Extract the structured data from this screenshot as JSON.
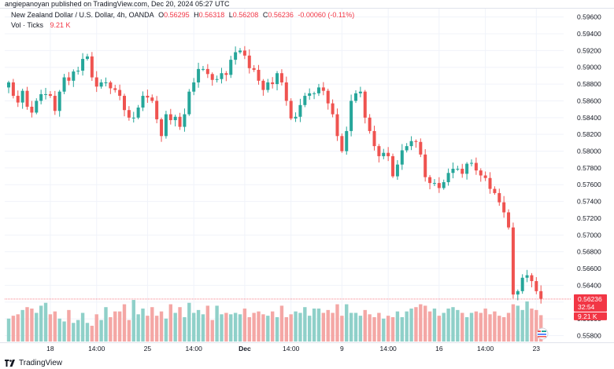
{
  "header": {
    "published": "angiepanoyan published on TradingView.com, Dec 20, 2024 05:27 UTC"
  },
  "legend": {
    "symbol": "New Zealand Dollar / U.S. Dollar, 4h, OANDA",
    "o_label": "O",
    "o_value": "0.56295",
    "h_label": "H",
    "h_value": "0.56318",
    "l_label": "L",
    "l_value": "0.56208",
    "c_label": "C",
    "c_value": "0.56236",
    "change": "-0.00060 (-0.11%)",
    "vol_label": "Vol · Ticks",
    "vol_value": "9.21 K"
  },
  "footer": {
    "brand": "TradingView"
  },
  "colors": {
    "up": "#26a69a",
    "down": "#ef5350",
    "vol_up": "#8fd0c9",
    "vol_down": "#f4a7a5",
    "tag_red": "#f23645",
    "grid": "#f0f3fa",
    "text": "#131722"
  },
  "chart_data": {
    "type": "candlestick",
    "title": "New Zealand Dollar / U.S. Dollar, 4h, OANDA",
    "ylim": [
      0.5572,
      0.597
    ],
    "y_ticks": [
      "0.59600",
      "0.59400",
      "0.59200",
      "0.59000",
      "0.58800",
      "0.58600",
      "0.58400",
      "0.58200",
      "0.58000",
      "0.57800",
      "0.57600",
      "0.57400",
      "0.57200",
      "0.57000",
      "0.56800",
      "0.56600",
      "0.56400",
      "0.56200",
      "0.56000",
      "0.55800"
    ],
    "x_ticks": [
      {
        "label": "18",
        "index": 9,
        "bold": false
      },
      {
        "label": "14:00",
        "index": 19,
        "bold": false
      },
      {
        "label": "25",
        "index": 30,
        "bold": false
      },
      {
        "label": "14:00",
        "index": 40,
        "bold": false
      },
      {
        "label": "Dec",
        "index": 51,
        "bold": true
      },
      {
        "label": "14:00",
        "index": 61,
        "bold": false
      },
      {
        "label": "9",
        "index": 72,
        "bold": false
      },
      {
        "label": "14:00",
        "index": 82,
        "bold": false
      },
      {
        "label": "16",
        "index": 93,
        "bold": false
      },
      {
        "label": "14:00",
        "index": 103,
        "bold": false
      },
      {
        "label": "23",
        "index": 114,
        "bold": false
      }
    ],
    "last_price": {
      "value": "0.56236",
      "countdown": "32:54"
    },
    "last_volume": "9.21 K",
    "closes": [
      0.5882,
      0.5866,
      0.5858,
      0.5872,
      0.5853,
      0.5846,
      0.586,
      0.5868,
      0.5868,
      0.5866,
      0.5848,
      0.5871,
      0.5888,
      0.5884,
      0.5895,
      0.5896,
      0.591,
      0.5913,
      0.5888,
      0.5877,
      0.5882,
      0.5882,
      0.5875,
      0.5873,
      0.5866,
      0.5849,
      0.584,
      0.584,
      0.5852,
      0.5866,
      0.5864,
      0.586,
      0.5838,
      0.5818,
      0.5844,
      0.5837,
      0.5841,
      0.5829,
      0.5844,
      0.5871,
      0.5882,
      0.5898,
      0.5898,
      0.5892,
      0.5885,
      0.5886,
      0.5893,
      0.5891,
      0.5909,
      0.5918,
      0.592,
      0.5914,
      0.5899,
      0.5897,
      0.5884,
      0.5873,
      0.5882,
      0.588,
      0.5893,
      0.5882,
      0.586,
      0.5839,
      0.5841,
      0.5855,
      0.5866,
      0.5869,
      0.5869,
      0.5876,
      0.5872,
      0.5857,
      0.5844,
      0.5818,
      0.58,
      0.5824,
      0.586,
      0.5869,
      0.5871,
      0.584,
      0.5824,
      0.5806,
      0.5794,
      0.5798,
      0.5794,
      0.577,
      0.5784,
      0.5801,
      0.5806,
      0.5812,
      0.5811,
      0.5796,
      0.5769,
      0.5762,
      0.5762,
      0.5756,
      0.5763,
      0.5774,
      0.5779,
      0.5779,
      0.5773,
      0.5785,
      0.5786,
      0.5777,
      0.5771,
      0.5768,
      0.5755,
      0.575,
      0.5739,
      0.5727,
      0.5709,
      0.5629,
      0.5633,
      0.5649,
      0.5652,
      0.5645,
      0.5633,
      0.5624
    ],
    "volumes": [
      8.0,
      9.0,
      9.5,
      11.0,
      12.0,
      11.5,
      10.0,
      12.5,
      13.5,
      9.5,
      10.5,
      8.0,
      7.0,
      11.0,
      6.5,
      7.5,
      10.0,
      6.5,
      5.5,
      9.5,
      7.5,
      12.0,
      8.5,
      10.5,
      10.5,
      13.0,
      7.5,
      14.5,
      9.5,
      11.5,
      9.0,
      12.0,
      9.0,
      10.5,
      8.0,
      13.0,
      10.0,
      12.0,
      8.5,
      13.5,
      10.0,
      11.0,
      9.5,
      12.5,
      7.5,
      12.5,
      9.5,
      10.0,
      9.5,
      10.0,
      9.5,
      11.5,
      8.5,
      10.0,
      10.5,
      9.5,
      9.0,
      10.5,
      8.5,
      12.5,
      8.5,
      9.5,
      10.5,
      10.0,
      12.0,
      9.0,
      11.5,
      11.5,
      10.0,
      11.0,
      10.0,
      13.0,
      9.0,
      13.0,
      10.0,
      10.0,
      9.0,
      11.0,
      9.5,
      8.5,
      10.0,
      8.0,
      9.0,
      8.5,
      10.5,
      8.5,
      10.5,
      11.5,
      12.0,
      13.0,
      12.5,
      10.5,
      11.5,
      9.0,
      10.0,
      11.5,
      12.0,
      11.0,
      10.0,
      8.5,
      10.0,
      10.5,
      10.0,
      11.5,
      9.5,
      10.5,
      9.0,
      8.5,
      10.0,
      13.0,
      12.5,
      11.0,
      14.0,
      11.5,
      11.0,
      9.2
    ]
  }
}
